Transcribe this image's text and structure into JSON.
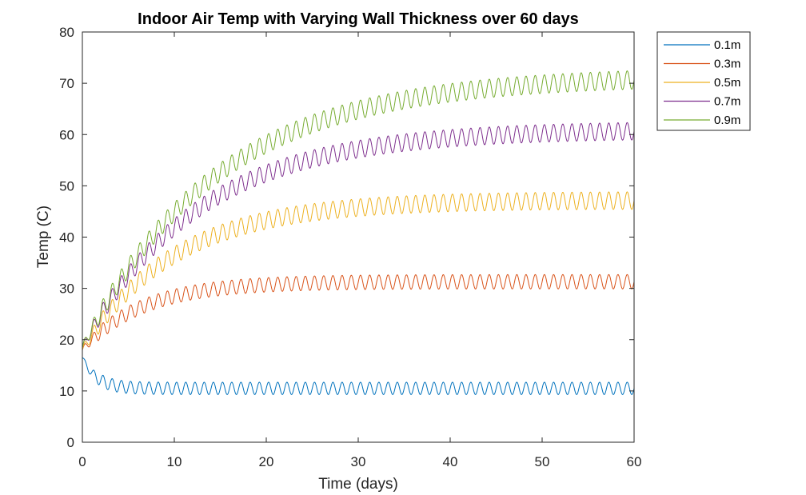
{
  "chart_data": {
    "type": "line",
    "title": "Indoor Air Temp with Varying Wall Thickness over 60 days",
    "xlabel": "Time (days)",
    "ylabel": "Temp (C)",
    "xlim": [
      0,
      60
    ],
    "ylim": [
      0,
      80
    ],
    "xticks": [
      0,
      10,
      20,
      30,
      40,
      50,
      60
    ],
    "yticks": [
      0,
      10,
      20,
      30,
      40,
      50,
      60,
      70,
      80
    ],
    "grid": false,
    "legend_position": "outside-top-right",
    "oscillation_period_days": 1,
    "series": [
      {
        "name": "0.1m",
        "color": "#0072BD",
        "start": 16.5,
        "steady": 10.5,
        "time_constant_days": 1.5,
        "amplitude": 1.2
      },
      {
        "name": "0.3m",
        "color": "#D95319",
        "start": 18.0,
        "steady": 31.3,
        "time_constant_days": 6.5,
        "amplitude": 1.4
      },
      {
        "name": "0.5m",
        "color": "#EDB120",
        "start": 18.0,
        "steady": 47.2,
        "time_constant_days": 10.0,
        "amplitude": 1.7
      },
      {
        "name": "0.7m",
        "color": "#7E2F8E",
        "start": 18.5,
        "steady": 61.0,
        "time_constant_days": 12.5,
        "amplitude": 1.7
      },
      {
        "name": "0.9m",
        "color": "#77AC30",
        "start": 18.5,
        "steady": 71.5,
        "time_constant_days": 14.5,
        "amplitude": 1.8
      }
    ]
  }
}
